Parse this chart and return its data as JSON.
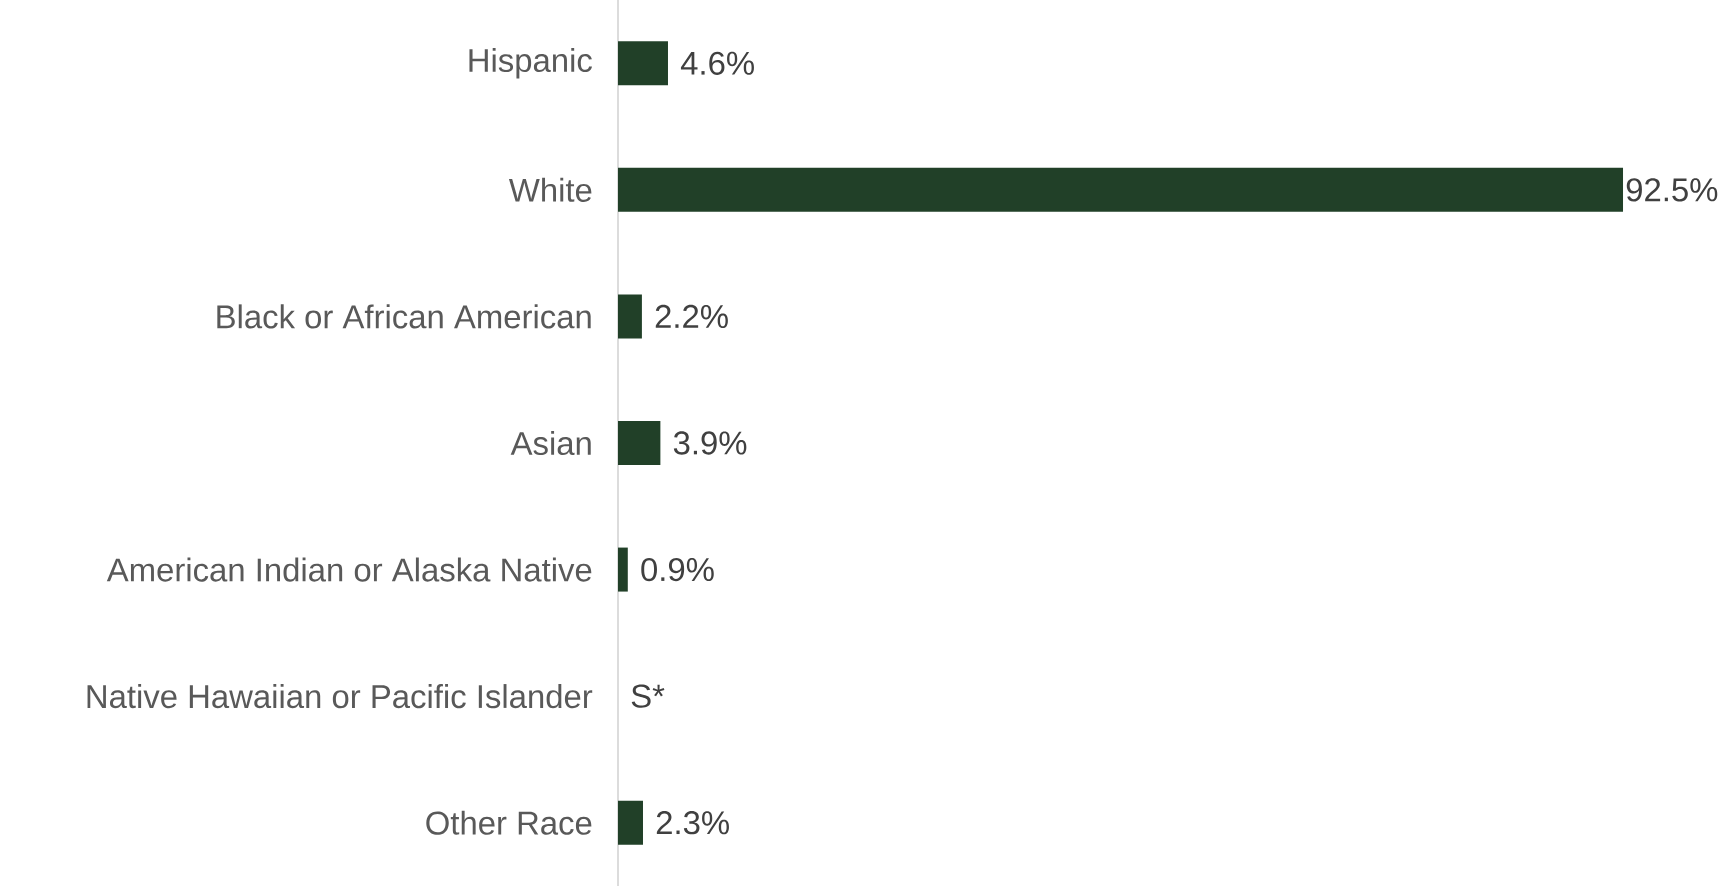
{
  "chart_data": {
    "type": "bar",
    "orientation": "horizontal",
    "categories": [
      "Hispanic",
      "White",
      "Black or African American",
      "Asian",
      "American Indian or Alaska Native",
      "Native Hawaiian or Pacific Islander",
      "Other Race"
    ],
    "values": [
      4.6,
      92.5,
      2.2,
      3.9,
      0.9,
      null,
      2.3
    ],
    "value_labels": [
      "4.6%",
      "92.5%",
      "2.2%",
      "3.9%",
      "0.9%",
      "S*",
      "2.3%"
    ],
    "color": "#214028"
  }
}
